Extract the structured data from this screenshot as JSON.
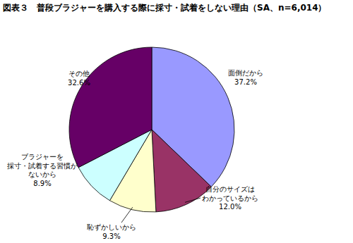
{
  "chart_data": {
    "type": "pie",
    "title": "図表３　普段ブラジャーを購入する際に採寸・試着をしない理由（SA、n=6,014）",
    "categories": [
      "面倒だから",
      "自分のサイズは\nわかっているから",
      "恥ずかしいから",
      "ブラジャーを\n採寸・試着する習慣が\nないから",
      "その他"
    ],
    "values": [
      37.2,
      12.0,
      9.3,
      8.9,
      32.6
    ],
    "value_labels": [
      "37.2%",
      "12.0%",
      "9.3%",
      "8.9%",
      "32.6%"
    ],
    "colors": [
      "#9999ff",
      "#993366",
      "#ffffcc",
      "#ccffff",
      "#660066"
    ],
    "data_labels": true
  }
}
